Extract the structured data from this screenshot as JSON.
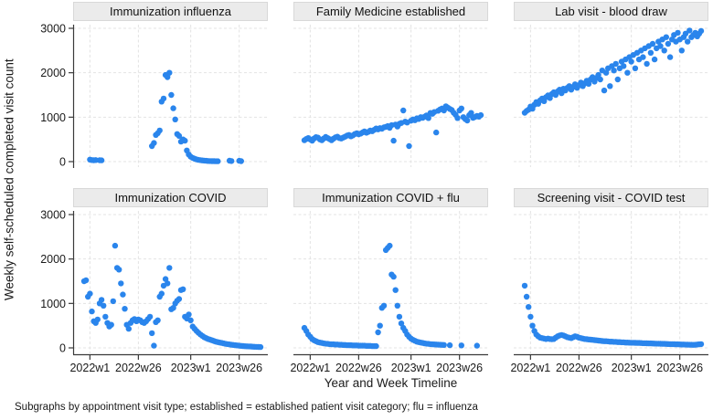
{
  "figure": {
    "y_axis_title": "Weekly self-scheduled completed visit count",
    "x_axis_title": "Year and Week Timeline",
    "footnote": "Subgraphs by appointment visit type; established = established patient visit category; flu = influenza"
  },
  "chart_data": {
    "type": "scatter",
    "layout": "2x3 small multiples, subgraphs by appointment visit type; axes shown on left column and bottom row only; dashed gridlines",
    "x_unit": "week index, 0 = 2022w1 (one dot per week)",
    "xlim_weeks": [
      -3,
      88
    ],
    "ylim": [
      0,
      3000
    ],
    "x_ticks": [
      {
        "week": 0,
        "label": "2022w1"
      },
      {
        "week": 25,
        "label": "2022w26"
      },
      {
        "week": 52,
        "label": "2023w1"
      },
      {
        "week": 77,
        "label": "2023w26"
      }
    ],
    "y_ticks": [
      {
        "value": 0,
        "label": "0"
      },
      {
        "value": 1000,
        "label": "1000"
      },
      {
        "value": 2000,
        "label": "2000"
      },
      {
        "value": 3000,
        "label": "3000"
      }
    ],
    "colors": {
      "marker": "#2A85EC",
      "grid": "#E3E3E3",
      "axis": "#3a3a3a",
      "strip_bg": "#EBEBEB"
    },
    "panels": [
      {
        "title": "Immunization influenza",
        "start_week": -3,
        "values": [
          null,
          null,
          null,
          45,
          35,
          30,
          35,
          null,
          30,
          28,
          null,
          null,
          null,
          null,
          null,
          null,
          null,
          null,
          null,
          null,
          null,
          null,
          null,
          null,
          null,
          null,
          null,
          null,
          null,
          null,
          null,
          null,
          null,
          null,
          null,
          350,
          420,
          600,
          640,
          700,
          1350,
          1420,
          1950,
          1900,
          2000,
          1500,
          1200,
          950,
          620,
          580,
          450,
          500,
          470,
          250,
          160,
          110,
          85,
          65,
          50,
          40,
          32,
          26,
          22,
          18,
          15,
          12,
          10,
          10,
          8,
          8,
          null,
          null,
          null,
          null,
          null,
          20,
          12,
          null,
          null,
          null,
          18,
          10,
          null,
          null,
          null,
          null,
          null,
          null,
          null,
          null,
          null,
          null
        ]
      },
      {
        "title": "Family Medicine established",
        "start_week": -3,
        "values": [
          480,
          510,
          530,
          500,
          470,
          520,
          550,
          540,
          500,
          480,
          520,
          555,
          530,
          505,
          480,
          515,
          545,
          560,
          530,
          520,
          540,
          560,
          585,
          600,
          570,
          590,
          620,
          640,
          615,
          630,
          655,
          680,
          650,
          670,
          700,
          685,
          715,
          745,
          725,
          755,
          740,
          770,
          780,
          800,
          760,
          820,
          470,
          835,
          790,
          850,
          870,
          1150,
          900,
          880,
          350,
          920,
          950,
          930,
          975,
          960,
          1000,
          985,
          1010,
          1040,
          980,
          1095,
          1075,
          1115,
          655,
          1145,
          1175,
          1195,
          1150,
          1245,
          1215,
          1185,
          1160,
          1100,
          1055,
          980,
          1150,
          1195,
          1000,
          955,
          925,
          1045,
          1095,
          985,
          1005,
          1030,
          1010,
          1045
        ]
      },
      {
        "title": "Lab visit - blood draw",
        "start_week": -3,
        "values": [
          1100,
          1140,
          1170,
          1240,
          1190,
          1280,
          1340,
          1300,
          1380,
          1420,
          1360,
          1450,
          1490,
          1430,
          1520,
          1560,
          1500,
          1580,
          1620,
          1540,
          1640,
          1600,
          1660,
          1700,
          1620,
          1680,
          1740,
          1660,
          1720,
          1780,
          1700,
          1760,
          1820,
          1750,
          1850,
          1900,
          1800,
          1880,
          1950,
          1850,
          2050,
          1600,
          2000,
          2100,
          1700,
          2150,
          2050,
          2200,
          1850,
          2100,
          2250,
          2150,
          2300,
          2000,
          2350,
          2250,
          2400,
          2100,
          2450,
          2300,
          2500,
          2350,
          2550,
          2200,
          2600,
          2450,
          2650,
          2300,
          2550,
          2700,
          2600,
          2750,
          2500,
          2800,
          2650,
          2350,
          2750,
          2850,
          2700,
          2900,
          2750,
          2500,
          2800,
          2880,
          2700,
          2950,
          2800,
          2850,
          2900,
          2820,
          2880,
          2940
        ]
      },
      {
        "title": "Immunization COVID",
        "start_week": -3,
        "values": [
          1500,
          1520,
          1150,
          1220,
          820,
          600,
          560,
          640,
          1000,
          1080,
          950,
          700,
          560,
          480,
          520,
          1050,
          2300,
          1800,
          1760,
          1450,
          1200,
          880,
          520,
          430,
          560,
          620,
          650,
          600,
          640,
          620,
          580,
          560,
          600,
          650,
          700,
          330,
          50,
          580,
          620,
          1150,
          1220,
          1400,
          1550,
          1450,
          1800,
          870,
          900,
          1000,
          1060,
          1100,
          1300,
          1320,
          700,
          660,
          750,
          620,
          480,
          430,
          380,
          340,
          300,
          270,
          240,
          220,
          200,
          185,
          170,
          155,
          140,
          130,
          120,
          110,
          100,
          90,
          85,
          78,
          70,
          65,
          60,
          55,
          50,
          45,
          42,
          38,
          35,
          32,
          30,
          26,
          24,
          22,
          20,
          18
        ]
      },
      {
        "title": "Immunization COVID + flu",
        "start_week": -3,
        "values": [
          450,
          380,
          300,
          250,
          200,
          170,
          150,
          130,
          120,
          110,
          100,
          95,
          90,
          85,
          80,
          80,
          75,
          75,
          70,
          70,
          65,
          65,
          60,
          60,
          60,
          55,
          55,
          55,
          50,
          50,
          50,
          50,
          45,
          45,
          45,
          40,
          40,
          40,
          350,
          500,
          900,
          950,
          2200,
          2250,
          2300,
          1650,
          1600,
          1300,
          950,
          700,
          550,
          450,
          380,
          300,
          250,
          210,
          180,
          160,
          140,
          130,
          120,
          110,
          100,
          95,
          90,
          85,
          80,
          78,
          75,
          72,
          70,
          68,
          65,
          null,
          null,
          60,
          null,
          null,
          null,
          null,
          null,
          55,
          null,
          null,
          null,
          null,
          null,
          null,
          null,
          50,
          null,
          null
        ]
      },
      {
        "title": "Screening visit - COVID test",
        "start_week": -3,
        "values": [
          1400,
          1150,
          920,
          700,
          500,
          380,
          300,
          260,
          230,
          220,
          210,
          200,
          210,
          200,
          195,
          200,
          230,
          260,
          280,
          290,
          280,
          260,
          240,
          230,
          220,
          240,
          260,
          250,
          230,
          220,
          210,
          200,
          195,
          190,
          185,
          180,
          175,
          170,
          165,
          160,
          155,
          150,
          150,
          145,
          140,
          140,
          135,
          135,
          130,
          130,
          125,
          125,
          120,
          120,
          118,
          115,
          115,
          112,
          110,
          110,
          108,
          105,
          105,
          102,
          100,
          100,
          98,
          96,
          95,
          94,
          92,
          90,
          90,
          88,
          86,
          85,
          84,
          82,
          80,
          80,
          78,
          76,
          75,
          74,
          72,
          70,
          70,
          68,
          70,
          75,
          80,
          85
        ]
      }
    ]
  }
}
